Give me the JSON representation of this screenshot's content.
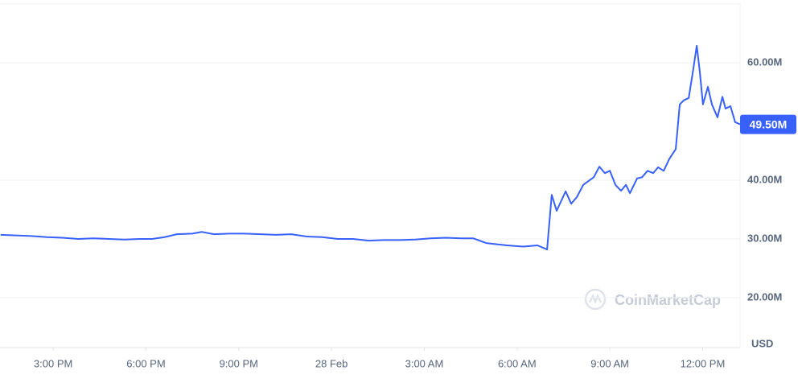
{
  "chart_data": {
    "type": "line",
    "x": [
      13.3,
      13.8,
      14.3,
      14.8,
      15.3,
      15.8,
      16.3,
      16.8,
      17.3,
      17.8,
      18.2,
      18.6,
      19.0,
      19.5,
      19.8,
      20.2,
      20.7,
      21.2,
      21.7,
      22.2,
      22.7,
      23.2,
      23.7,
      24.2,
      24.7,
      25.2,
      25.7,
      26.2,
      26.7,
      27.2,
      27.7,
      28.2,
      28.58,
      29.0,
      29.67,
      30.2,
      30.66,
      30.97,
      31.12,
      31.28,
      31.57,
      31.75,
      31.93,
      32.14,
      32.32,
      32.48,
      32.66,
      32.84,
      33.0,
      33.18,
      33.36,
      33.52,
      33.65,
      33.88,
      34.04,
      34.22,
      34.4,
      34.56,
      34.74,
      34.92,
      35.13,
      35.26,
      35.39,
      35.55,
      35.7,
      35.81,
      35.91,
      36.01,
      36.17,
      36.3,
      36.48,
      36.64,
      36.74,
      36.9,
      37.05,
      37.21
    ],
    "series": [
      {
        "color": "#3861fb",
        "values": [
          30.7,
          30.6,
          30.5,
          30.3,
          30.2,
          30.0,
          30.1,
          30.0,
          29.9,
          30.0,
          30.0,
          30.3,
          30.8,
          30.9,
          31.2,
          30.8,
          30.9,
          30.9,
          30.8,
          30.7,
          30.8,
          30.4,
          30.3,
          30.0,
          30.0,
          29.7,
          29.8,
          29.8,
          29.9,
          30.1,
          30.2,
          30.1,
          30.1,
          29.3,
          28.9,
          28.7,
          28.9,
          28.2,
          37.5,
          34.8,
          38.1,
          36.0,
          37.1,
          39.2,
          39.9,
          40.5,
          42.3,
          41.2,
          41.6,
          39.2,
          38.2,
          39.2,
          37.8,
          40.3,
          40.5,
          41.6,
          41.2,
          42.2,
          41.6,
          43.6,
          45.3,
          52.9,
          53.6,
          54.0,
          59.0,
          62.9,
          58.4,
          52.9,
          55.9,
          52.9,
          50.7,
          54.2,
          52.2,
          52.6,
          49.9,
          49.5
        ]
      }
    ],
    "xlim": [
      13.28,
      37.21
    ],
    "xticks": [
      {
        "value": 15,
        "label": "3:00 PM"
      },
      {
        "value": 18,
        "label": "6:00 PM"
      },
      {
        "value": 21,
        "label": "9:00 PM"
      },
      {
        "value": 24,
        "label": "28 Feb"
      },
      {
        "value": 27,
        "label": "3:00 AM"
      },
      {
        "value": 30,
        "label": "6:00 AM"
      },
      {
        "value": 33,
        "label": "9:00 AM"
      },
      {
        "value": 36,
        "label": "12:00 PM"
      }
    ],
    "ylim": [
      11.5,
      70
    ],
    "yticks": [
      {
        "value": 20,
        "label": "20.00M"
      },
      {
        "value": 30,
        "label": "30.00M"
      },
      {
        "value": 40,
        "label": "40.00M"
      },
      {
        "value": 60,
        "label": "60.00M"
      }
    ],
    "y_axis_label": "USD",
    "current": {
      "value": 49.5,
      "label": "49.50M"
    },
    "watermark": "CoinMarketCap",
    "grid": true
  }
}
